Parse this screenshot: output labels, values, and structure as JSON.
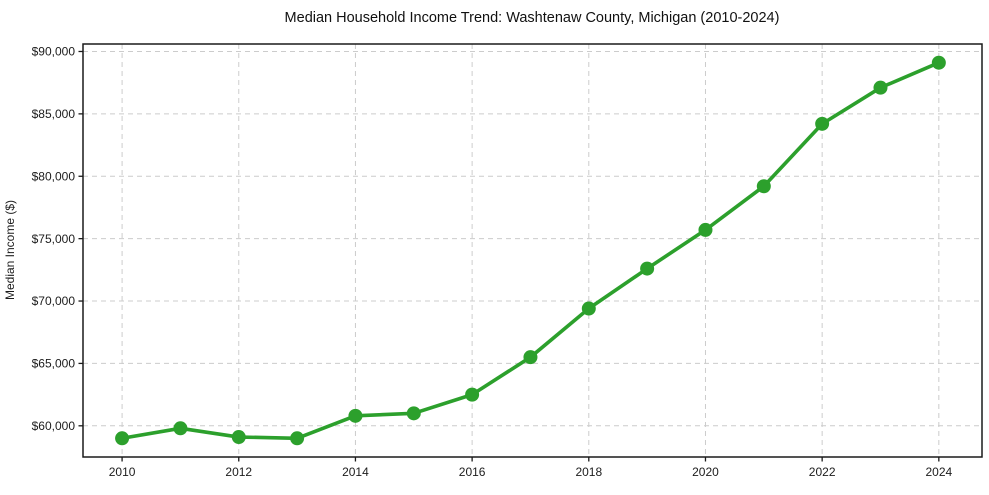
{
  "chart_data": {
    "type": "line",
    "title": "Median Household Income Trend: Washtenaw County, Michigan (2010-2024)",
    "xlabel": "",
    "ylabel": "Median Income ($)",
    "series": [
      {
        "name": "Median Household Income",
        "x": [
          2010,
          2011,
          2012,
          2013,
          2014,
          2015,
          2016,
          2017,
          2018,
          2019,
          2020,
          2021,
          2022,
          2023,
          2024
        ],
        "values": [
          59000,
          59800,
          59100,
          59000,
          60800,
          61000,
          62500,
          65500,
          69400,
          72600,
          75700,
          79200,
          84200,
          87100,
          89100
        ],
        "line_color": "#2ca02c",
        "marker": "circle",
        "marker_color": "#2ca02c"
      }
    ],
    "xticks": {
      "values": [
        2010,
        2012,
        2014,
        2016,
        2018,
        2020,
        2022,
        2024
      ],
      "labels": [
        "2010",
        "2012",
        "2014",
        "2016",
        "2018",
        "2020",
        "2022",
        "2024"
      ]
    },
    "yticks": {
      "values": [
        60000,
        65000,
        70000,
        75000,
        80000,
        85000,
        90000
      ],
      "labels": [
        "$60,000",
        "$65,000",
        "$70,000",
        "$75,000",
        "$80,000",
        "$85,000",
        "$90,000"
      ]
    },
    "xlim": [
      2009.33,
      2024.74
    ],
    "ylim": [
      57500,
      90600
    ],
    "grid": true,
    "grid_style": "dashed",
    "legend": "none",
    "background": "#ffffff",
    "grid_color": "#cccccc",
    "axis_color": "#1a1a1a",
    "text_color": "#1c1c1c"
  }
}
